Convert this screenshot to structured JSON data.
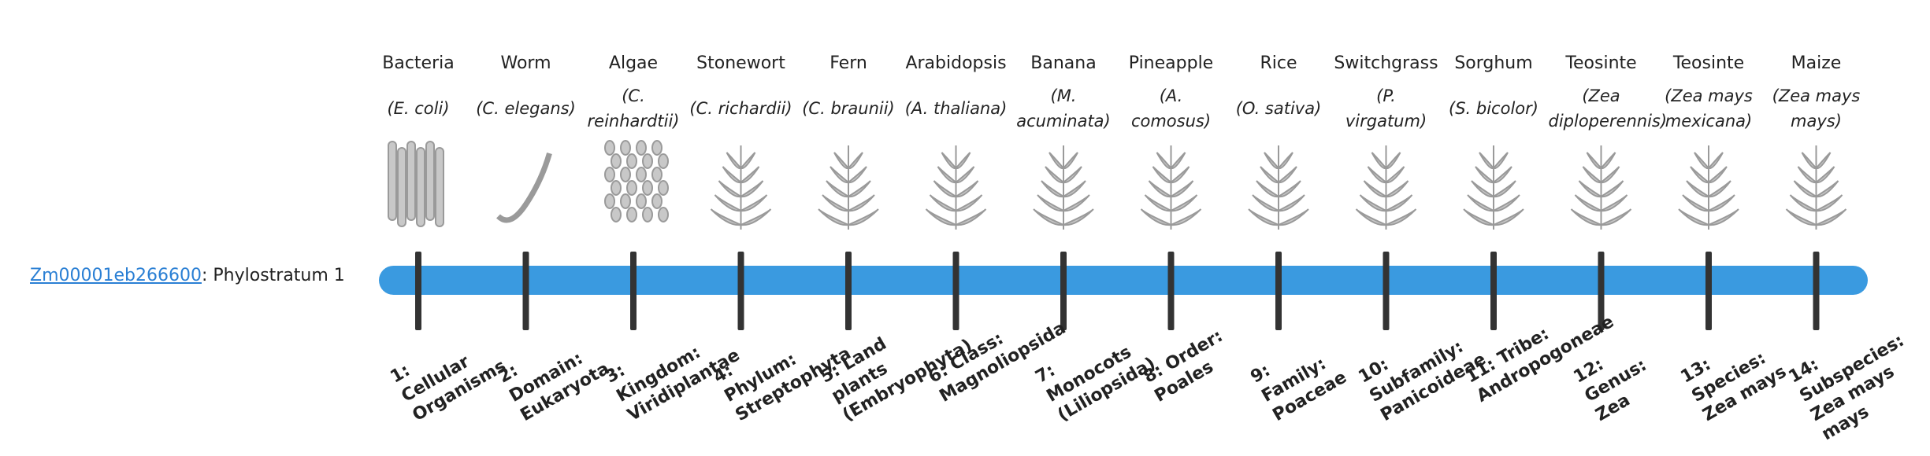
{
  "gene": {
    "id": "Zm00001eb266600",
    "suffix": ": Phylostratum 1"
  },
  "nodes": [
    {
      "name": "Bacteria",
      "species": "(E. coli)",
      "stratum": "1: Cellular Organisms"
    },
    {
      "name": "Worm",
      "species": "(C. elegans)",
      "stratum": "2: Domain: Eukaryota"
    },
    {
      "name": "Algae",
      "species": "(C. reinhardtii)",
      "stratum": "3: Kingdom: Viridiplantae"
    },
    {
      "name": "Stonewort",
      "species": "(C. richardii)",
      "stratum": "4: Phylum: Streptophyta"
    },
    {
      "name": "Fern",
      "species": "(C. braunii)",
      "stratum": "5: Land plants (Embryophyta)"
    },
    {
      "name": "Arabidopsis",
      "species": "(A. thaliana)",
      "stratum": "6: Class: Magnoliopsida"
    },
    {
      "name": "Banana",
      "species": "(M. acuminata)",
      "stratum": "7: Monocots (Liliopsida)"
    },
    {
      "name": "Pineapple",
      "species": "(A. comosus)",
      "stratum": "8: Order: Poales"
    },
    {
      "name": "Rice",
      "species": "(O. sativa)",
      "stratum": "9: Family: Poaceae"
    },
    {
      "name": "Switchgrass",
      "species": "(P. virgatum)",
      "stratum": "10: Subfamily: Panicoideae"
    },
    {
      "name": "Sorghum",
      "species": "(S. bicolor)",
      "stratum": "11: Tribe: Andropogoneae"
    },
    {
      "name": "Teosinte",
      "species": "(Zea diploperennis)",
      "stratum": "12: Genus: Zea"
    },
    {
      "name": "Teosinte",
      "species": "(Zea mays mexicana)",
      "stratum": "13: Species: Zea mays"
    },
    {
      "name": "Maize",
      "species": "(Zea mays mays)",
      "stratum": "14: Subspecies: Zea mays mays"
    }
  ]
}
